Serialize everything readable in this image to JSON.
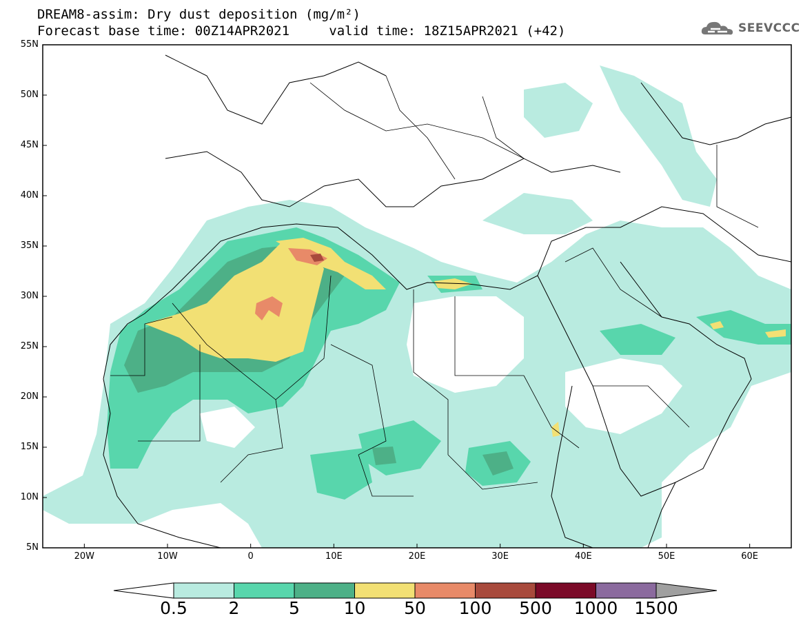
{
  "title": {
    "line1": "DREAM8-assim: Dry dust deposition (mg/m²)",
    "line2_base": "Forecast base time: 00Z14APR2021",
    "line2_valid": "valid time: 18Z15APR2021 (+42)"
  },
  "logo": {
    "text": "SEEVCCC",
    "icon": "cloud-logo-icon"
  },
  "map": {
    "lat_labels": [
      "55N",
      "50N",
      "45N",
      "40N",
      "35N",
      "30N",
      "25N",
      "20N",
      "15N",
      "10N",
      "5N"
    ],
    "lon_labels": [
      "20W",
      "10W",
      "0",
      "10E",
      "20E",
      "30E",
      "40E",
      "50E",
      "60E"
    ],
    "lat_range": [
      5,
      55
    ],
    "lon_range": [
      -25,
      65
    ],
    "colors": {
      "frame": "#000000",
      "land_border": "#000000"
    }
  },
  "colorbar": {
    "labels": [
      "0.5",
      "2",
      "5",
      "10",
      "50",
      "100",
      "500",
      "1000",
      "1500"
    ],
    "colors": [
      "#b9ebe0",
      "#58d6ac",
      "#4db087",
      "#f2e074",
      "#e88a68",
      "#a84a3c",
      "#7b0a28",
      "#8b6a9e",
      "#a0a0a0"
    ],
    "under_color": "#ffffff",
    "over_color": "#a0a0a0"
  },
  "chart_data": {
    "type": "heatmap",
    "title": "DREAM8-assim: Dry dust deposition (mg/m²)",
    "xlabel": "",
    "ylabel": "",
    "xlim": [
      -25,
      65
    ],
    "ylim": [
      5,
      55
    ],
    "x_ticks": [
      "20W",
      "10W",
      "0",
      "10E",
      "20E",
      "30E",
      "40E",
      "50E",
      "60E"
    ],
    "y_ticks": [
      "55N",
      "50N",
      "45N",
      "40N",
      "35N",
      "30N",
      "25N",
      "20N",
      "15N",
      "10N",
      "5N"
    ],
    "levels": [
      0.5,
      2,
      5,
      10,
      50,
      100,
      500,
      1000,
      1500
    ],
    "units": "mg/m²"
  }
}
